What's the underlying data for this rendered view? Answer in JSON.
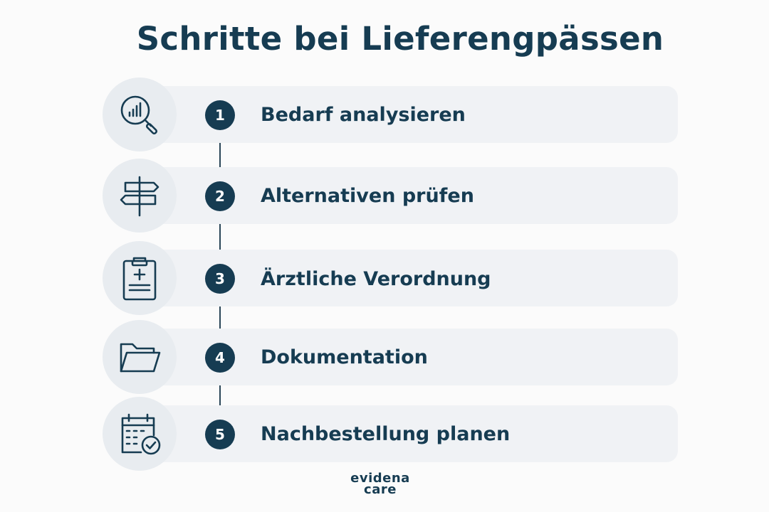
{
  "title": "Schritte bei Lieferengpässen",
  "steps": [
    {
      "number": "1",
      "label": "Bedarf analysieren",
      "icon": "magnifier-chart-icon"
    },
    {
      "number": "2",
      "label": "Alternativen prüfen",
      "icon": "signpost-icon"
    },
    {
      "number": "3",
      "label": "Ärztliche Verordnung",
      "icon": "clipboard-medical-icon"
    },
    {
      "number": "4",
      "label": "Dokumentation",
      "icon": "folder-icon"
    },
    {
      "number": "5",
      "label": "Nachbestellung planen",
      "icon": "calendar-check-icon"
    }
  ],
  "logo": {
    "line1": "evidena",
    "line2": "care"
  },
  "colors": {
    "primary": "#163c52",
    "row_background": "#f0f2f5",
    "icon_circle": "#e8ecf0",
    "page_background": "#fbfbfb"
  }
}
